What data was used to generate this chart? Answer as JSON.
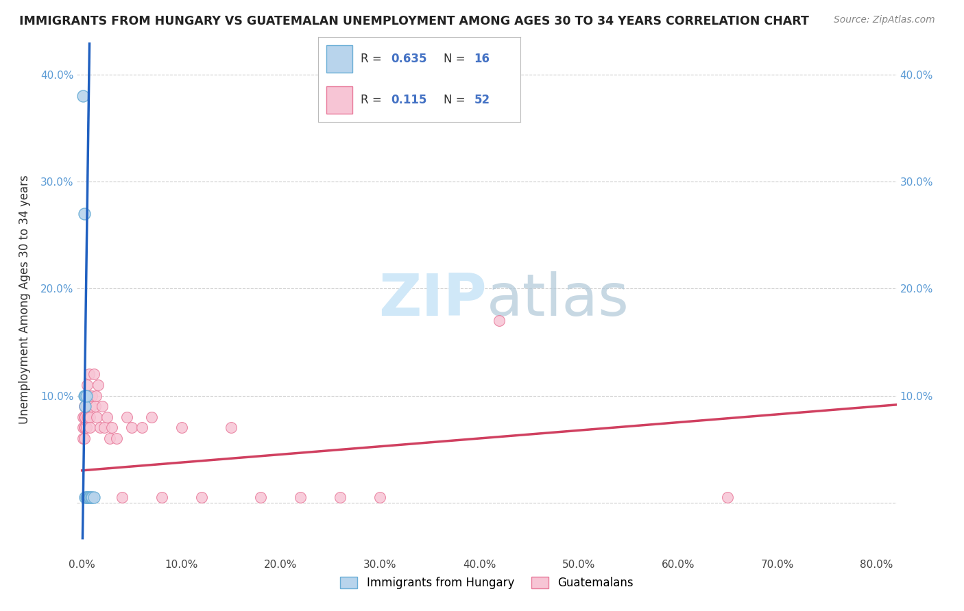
{
  "title": "IMMIGRANTS FROM HUNGARY VS GUATEMALAN UNEMPLOYMENT AMONG AGES 30 TO 34 YEARS CORRELATION CHART",
  "source": "Source: ZipAtlas.com",
  "ylabel": "Unemployment Among Ages 30 to 34 years",
  "xlim": [
    -0.005,
    0.82
  ],
  "ylim": [
    -0.05,
    0.43
  ],
  "xticks": [
    0.0,
    0.1,
    0.2,
    0.3,
    0.4,
    0.5,
    0.6,
    0.7,
    0.8
  ],
  "yticks": [
    0.0,
    0.1,
    0.2,
    0.3,
    0.4
  ],
  "xtick_labels": [
    "0.0%",
    "10.0%",
    "20.0%",
    "30.0%",
    "40.0%",
    "50.0%",
    "60.0%",
    "70.0%",
    "80.0%"
  ],
  "ytick_labels": [
    "",
    "10.0%",
    "20.0%",
    "30.0%",
    "40.0%"
  ],
  "legend_blue_r": "0.635",
  "legend_blue_n": "16",
  "legend_pink_r": "0.115",
  "legend_pink_n": "52",
  "legend_blue_label": "Immigrants from Hungary",
  "legend_pink_label": "Guatemalans",
  "blue_color": "#b8d4ec",
  "blue_edge_color": "#6aaed6",
  "pink_color": "#f7c5d5",
  "pink_edge_color": "#e8799a",
  "trendline_blue_color": "#2060c0",
  "trendline_pink_color": "#d04060",
  "watermark_color": "#d0e8f8",
  "background_color": "#ffffff",
  "grid_color": "#cccccc",
  "blue_x": [
    0.001,
    0.002,
    0.002,
    0.003,
    0.003,
    0.003,
    0.004,
    0.004,
    0.005,
    0.005,
    0.006,
    0.007,
    0.008,
    0.009,
    0.01,
    0.012
  ],
  "blue_y": [
    0.38,
    0.27,
    0.1,
    0.1,
    0.09,
    0.005,
    0.1,
    0.005,
    0.005,
    0.005,
    0.005,
    0.005,
    0.005,
    0.005,
    0.005,
    0.005
  ],
  "pink_x": [
    0.001,
    0.001,
    0.001,
    0.002,
    0.002,
    0.002,
    0.002,
    0.003,
    0.003,
    0.003,
    0.003,
    0.004,
    0.004,
    0.004,
    0.005,
    0.005,
    0.005,
    0.006,
    0.006,
    0.007,
    0.007,
    0.008,
    0.008,
    0.009,
    0.01,
    0.012,
    0.013,
    0.014,
    0.015,
    0.016,
    0.018,
    0.02,
    0.022,
    0.025,
    0.028,
    0.03,
    0.035,
    0.04,
    0.045,
    0.05,
    0.06,
    0.07,
    0.08,
    0.1,
    0.12,
    0.15,
    0.18,
    0.22,
    0.26,
    0.3,
    0.42,
    0.65
  ],
  "pink_y": [
    0.08,
    0.07,
    0.06,
    0.09,
    0.08,
    0.07,
    0.06,
    0.09,
    0.08,
    0.07,
    0.005,
    0.1,
    0.09,
    0.07,
    0.11,
    0.08,
    0.005,
    0.1,
    0.08,
    0.12,
    0.1,
    0.08,
    0.07,
    0.09,
    0.1,
    0.12,
    0.09,
    0.1,
    0.08,
    0.11,
    0.07,
    0.09,
    0.07,
    0.08,
    0.06,
    0.07,
    0.06,
    0.005,
    0.08,
    0.07,
    0.07,
    0.08,
    0.005,
    0.07,
    0.005,
    0.07,
    0.005,
    0.005,
    0.005,
    0.005,
    0.17,
    0.005
  ]
}
